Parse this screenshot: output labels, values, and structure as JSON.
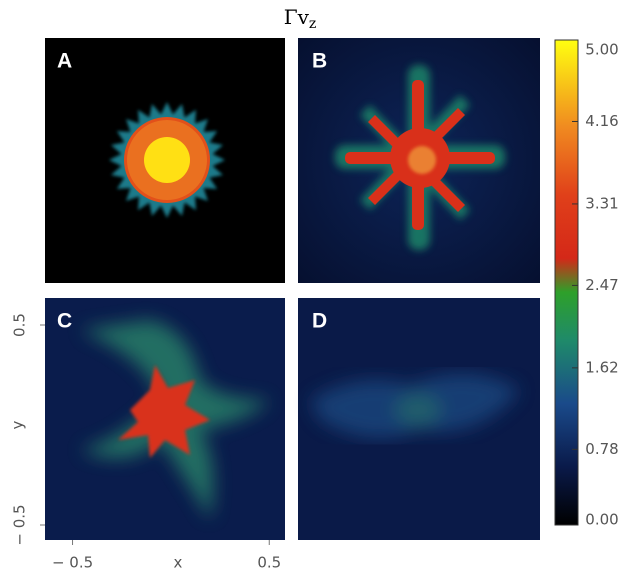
{
  "figure": {
    "title": {
      "main": "Γv",
      "sub": "z"
    },
    "panels": [
      "A",
      "B",
      "C",
      "D"
    ],
    "colorbar": {
      "lim": [
        0,
        5
      ],
      "ticks": [
        {
          "value": 0,
          "label": "0.00"
        },
        {
          "value": 0.78,
          "label": "0.78"
        },
        {
          "value": 1.62,
          "label": "1.62"
        },
        {
          "value": 2.47,
          "label": "2.47"
        },
        {
          "value": 3.31,
          "label": "3.31"
        },
        {
          "value": 4.16,
          "label": "4.16"
        },
        {
          "value": 5,
          "label": "5.00"
        }
      ]
    },
    "x_axis": {
      "label": "x",
      "lim": [
        -0.64,
        0.58
      ],
      "ticks": [
        {
          "value": -0.5,
          "label": "− 0.5"
        },
        0.5
      ]
    },
    "y_axis": {
      "label": "y",
      "lim": [
        -0.575,
        0.635
      ],
      "ticks": [
        0.5,
        {
          "value": -0.5,
          "label": "− 0.5"
        }
      ]
    }
  }
}
